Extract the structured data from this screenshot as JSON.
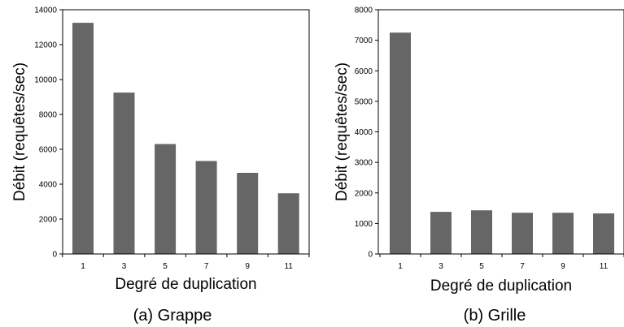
{
  "chart_data": [
    {
      "type": "bar",
      "caption": "(a) Grappe",
      "xlabel": "Degré de duplication",
      "ylabel": "Débit (requêtes/sec)",
      "categories": [
        "1",
        "3",
        "5",
        "7",
        "9",
        "11"
      ],
      "values": [
        13250,
        9250,
        6300,
        5330,
        4650,
        3480
      ],
      "ylim": [
        0,
        14000
      ],
      "yticks": [
        "0",
        "2000",
        "4000",
        "6000",
        "8000",
        "10000",
        "12000",
        "14000"
      ],
      "bar_color": "#666666",
      "grid": false
    },
    {
      "type": "bar",
      "caption": "(b) Grille",
      "xlabel": "Degré de duplication",
      "ylabel": "Débit (requêtes/sec)",
      "categories": [
        "1",
        "3",
        "5",
        "7",
        "9",
        "11"
      ],
      "values": [
        7250,
        1380,
        1430,
        1350,
        1350,
        1330
      ],
      "ylim": [
        0,
        8000
      ],
      "yticks": [
        "0",
        "1000",
        "2000",
        "3000",
        "4000",
        "5000",
        "6000",
        "7000",
        "8000"
      ],
      "bar_color": "#666666",
      "grid": false
    }
  ]
}
